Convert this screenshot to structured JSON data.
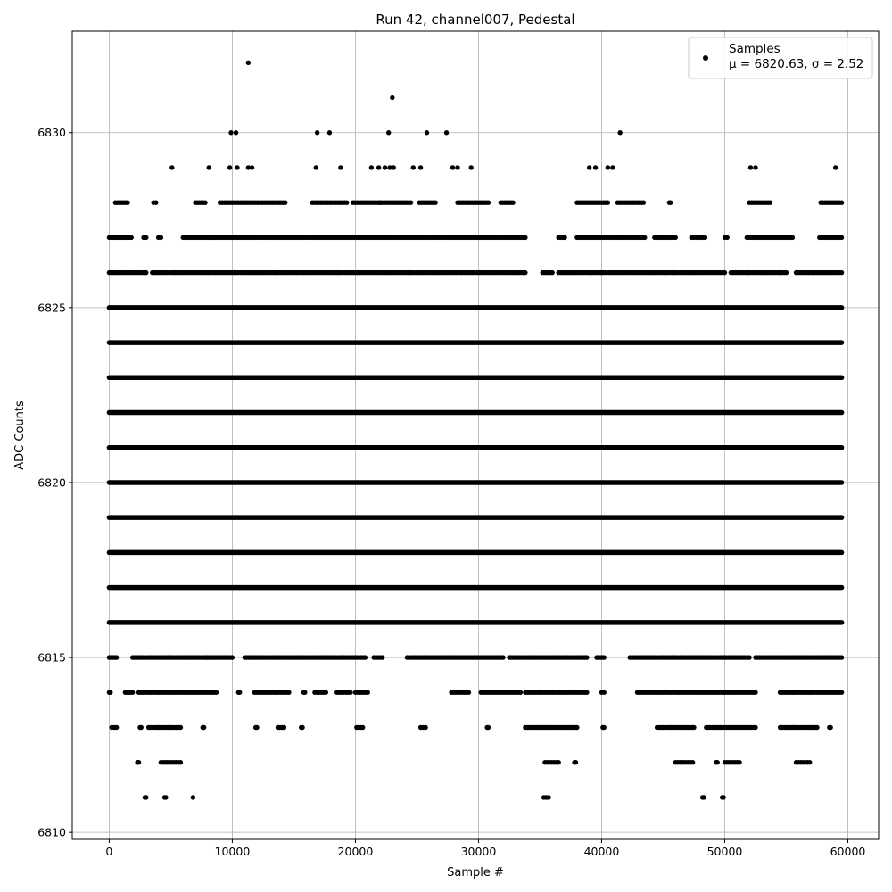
{
  "chart_data": {
    "type": "scatter",
    "title": "Run 42, channel007, Pedestal",
    "xlabel": "Sample #",
    "ylabel": "ADC Counts",
    "xlim": [
      -3000,
      62500
    ],
    "ylim": [
      6809.8,
      6832.9
    ],
    "xticks": [
      0,
      10000,
      20000,
      30000,
      40000,
      50000,
      60000
    ],
    "yticks": [
      6810,
      6815,
      6820,
      6825,
      6830
    ],
    "grid": true,
    "legend_position": "top-right",
    "marker_color": "#000000",
    "series": [
      {
        "name": "Samples",
        "stats_label": "μ = 6820.63, σ = 2.52",
        "x_range": [
          0,
          59500
        ],
        "dense_levels": [
          6816,
          6817,
          6818,
          6819,
          6820,
          6821,
          6822,
          6823,
          6824,
          6825
        ],
        "sparse_points": [
          [
            11300,
            6832
          ],
          [
            23000,
            6831
          ],
          [
            9900,
            6830
          ],
          [
            10300,
            6830
          ],
          [
            16900,
            6830
          ],
          [
            17900,
            6830
          ],
          [
            22700,
            6830
          ],
          [
            25800,
            6830
          ],
          [
            27400,
            6830
          ],
          [
            41500,
            6830
          ],
          [
            5100,
            6829
          ],
          [
            8100,
            6829
          ],
          [
            9800,
            6829
          ],
          [
            10400,
            6829
          ],
          [
            11300,
            6829
          ],
          [
            11600,
            6829
          ],
          [
            16800,
            6829
          ],
          [
            18800,
            6829
          ],
          [
            21300,
            6829
          ],
          [
            21900,
            6829
          ],
          [
            22400,
            6829
          ],
          [
            22800,
            6829
          ],
          [
            23100,
            6829
          ],
          [
            24700,
            6829
          ],
          [
            25300,
            6829
          ],
          [
            27900,
            6829
          ],
          [
            28300,
            6829
          ],
          [
            29400,
            6829
          ],
          [
            39000,
            6829
          ],
          [
            39500,
            6829
          ],
          [
            40500,
            6829
          ],
          [
            40900,
            6829
          ],
          [
            52100,
            6829
          ],
          [
            52500,
            6829
          ],
          [
            59000,
            6829
          ],
          [
            6810,
            6811
          ]
        ],
        "band_segments": [
          {
            "level": 6828,
            "ranges": [
              [
                500,
                1500
              ],
              [
                3600,
                3800
              ],
              [
                7000,
                7800
              ],
              [
                9000,
                14300
              ],
              [
                16500,
                19300
              ],
              [
                19800,
                22000
              ],
              [
                22000,
                24500
              ],
              [
                25200,
                26500
              ],
              [
                28300,
                30800
              ],
              [
                31800,
                32800
              ],
              [
                38000,
                40500
              ],
              [
                41300,
                43400
              ],
              [
                45500,
                45600
              ],
              [
                52000,
                53700
              ],
              [
                57800,
                59500
              ]
            ]
          },
          {
            "level": 6827,
            "ranges": [
              [
                0,
                1800
              ],
              [
                2800,
                3000
              ],
              [
                4000,
                4200
              ],
              [
                6000,
                8500
              ],
              [
                8500,
                25000
              ],
              [
                25000,
                33800
              ],
              [
                36500,
                37000
              ],
              [
                38000,
                43500
              ],
              [
                44300,
                46000
              ],
              [
                47300,
                48400
              ],
              [
                50000,
                50200
              ],
              [
                51800,
                55500
              ],
              [
                57700,
                59500
              ]
            ]
          },
          {
            "level": 6826,
            "ranges": [
              [
                0,
                3000
              ],
              [
                3500,
                33800
              ],
              [
                35200,
                36000
              ],
              [
                36500,
                50000
              ],
              [
                50500,
                55000
              ],
              [
                55800,
                59500
              ]
            ]
          },
          {
            "level": 6815,
            "ranges": [
              [
                0,
                600
              ],
              [
                1900,
                8000
              ],
              [
                8000,
                10000
              ],
              [
                11000,
                18200
              ],
              [
                18400,
                20800
              ],
              [
                21500,
                22200
              ],
              [
                24200,
                32000
              ],
              [
                32500,
                38800
              ],
              [
                39600,
                40200
              ],
              [
                42300,
                52000
              ],
              [
                52500,
                59500
              ]
            ]
          },
          {
            "level": 6814,
            "ranges": [
              [
                0,
                100
              ],
              [
                1300,
                1900
              ],
              [
                2400,
                6100
              ],
              [
                6300,
                8700
              ],
              [
                10500,
                10600
              ],
              [
                11800,
                14600
              ],
              [
                15800,
                15900
              ],
              [
                16700,
                17600
              ],
              [
                18500,
                19600
              ],
              [
                20000,
                21000
              ],
              [
                27800,
                29200
              ],
              [
                30200,
                33400
              ],
              [
                33800,
                38800
              ],
              [
                40000,
                40200
              ],
              [
                42900,
                52500
              ],
              [
                54500,
                57000
              ],
              [
                57100,
                59500
              ]
            ]
          },
          {
            "level": 6813,
            "ranges": [
              [
                200,
                600
              ],
              [
                2500,
                2600
              ],
              [
                3200,
                5800
              ],
              [
                7600,
                7700
              ],
              [
                11900,
                12000
              ],
              [
                13700,
                14200
              ],
              [
                15600,
                15700
              ],
              [
                20100,
                20600
              ],
              [
                25300,
                25700
              ],
              [
                30700,
                30800
              ],
              [
                33800,
                38000
              ],
              [
                40100,
                40200
              ],
              [
                44500,
                47500
              ],
              [
                48500,
                52500
              ],
              [
                54500,
                57500
              ],
              [
                58500,
                58600
              ]
            ]
          },
          {
            "level": 6812,
            "ranges": [
              [
                2300,
                2400
              ],
              [
                4200,
                5800
              ],
              [
                35400,
                36500
              ],
              [
                37800,
                37900
              ],
              [
                46000,
                47400
              ],
              [
                49300,
                49400
              ],
              [
                50000,
                51200
              ],
              [
                55800,
                56900
              ]
            ]
          },
          {
            "level": 6811,
            "ranges": [
              [
                2900,
                3000
              ],
              [
                4500,
                4600
              ],
              [
                35300,
                35700
              ],
              [
                48200,
                48300
              ],
              [
                49800,
                49900
              ]
            ]
          }
        ]
      }
    ]
  }
}
